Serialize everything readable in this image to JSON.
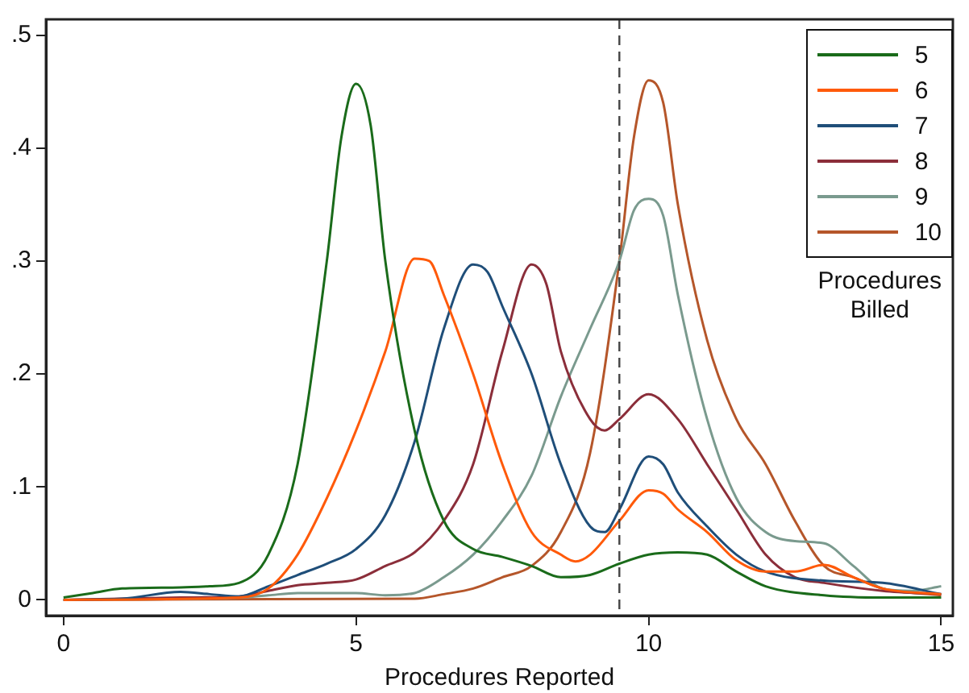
{
  "chart_data": {
    "type": "line",
    "xlabel": "Procedures Reported",
    "legend_title": "Procedures Billed",
    "legend": "top right",
    "grid": false,
    "marker": "none",
    "line_style": "solid",
    "xlim": [
      -0.3,
      15.2
    ],
    "xticks": [
      0,
      5,
      10,
      15
    ],
    "ylim": [
      -0.014,
      0.514
    ],
    "yticks": [
      {
        "value": 0,
        "label": "0"
      },
      {
        "value": 0.1,
        "label": ".1"
      },
      {
        "value": 0.2,
        "label": ".2"
      },
      {
        "value": 0.3,
        "label": ".3"
      },
      {
        "value": 0.4,
        "label": ".4"
      },
      {
        "value": 0.5,
        "label": ".5"
      }
    ],
    "ref_lines": [
      {
        "axis": "x",
        "value": 9.5,
        "label": null,
        "color": "#444444",
        "line_style": "dashed"
      }
    ],
    "series": [
      {
        "name": "5",
        "color": "#1a6b1a",
        "x": [
          0,
          0.5,
          1,
          2,
          2.5,
          3,
          3.5,
          4,
          4.5,
          4.75,
          5,
          5.25,
          5.5,
          6,
          6.5,
          7,
          7.5,
          8,
          8.5,
          9,
          9.5,
          10,
          10.5,
          11,
          11.5,
          12,
          13,
          14,
          15
        ],
        "values": [
          0.002,
          0.006,
          0.01,
          0.011,
          0.012,
          0.015,
          0.04,
          0.12,
          0.3,
          0.41,
          0.457,
          0.42,
          0.3,
          0.15,
          0.07,
          0.045,
          0.038,
          0.03,
          0.02,
          0.022,
          0.032,
          0.04,
          0.042,
          0.04,
          0.025,
          0.012,
          0.004,
          0.002,
          0.002
        ]
      },
      {
        "name": "6",
        "color": "#ff5a0a",
        "x": [
          0,
          3,
          3.5,
          4,
          4.5,
          5,
          5.5,
          6,
          6.25,
          6.5,
          7,
          7.5,
          8,
          8.5,
          8.75,
          9,
          9.5,
          10,
          10.25,
          10.5,
          11,
          11.5,
          12,
          12.5,
          13,
          13.5,
          14,
          15
        ],
        "values": [
          0,
          0.002,
          0.01,
          0.04,
          0.09,
          0.15,
          0.22,
          0.302,
          0.3,
          0.27,
          0.2,
          0.12,
          0.06,
          0.04,
          0.034,
          0.04,
          0.07,
          0.097,
          0.094,
          0.08,
          0.06,
          0.035,
          0.025,
          0.025,
          0.031,
          0.02,
          0.01,
          0.005
        ]
      },
      {
        "name": "7",
        "color": "#1f4e79",
        "x": [
          0,
          1,
          2,
          2.5,
          3,
          3.5,
          4,
          4.5,
          5,
          5.5,
          6,
          6.5,
          7,
          7.25,
          7.5,
          8,
          8.5,
          9,
          9.25,
          9.5,
          10,
          10.25,
          10.5,
          11,
          11.5,
          12,
          13,
          14,
          15
        ],
        "values": [
          0,
          0.001,
          0.007,
          0.005,
          0.003,
          0.012,
          0.022,
          0.032,
          0.045,
          0.075,
          0.14,
          0.24,
          0.297,
          0.29,
          0.26,
          0.2,
          0.12,
          0.065,
          0.06,
          0.08,
          0.127,
          0.12,
          0.095,
          0.065,
          0.04,
          0.025,
          0.017,
          0.015,
          0.005
        ]
      },
      {
        "name": "8",
        "color": "#8b2e3a",
        "x": [
          0,
          2,
          3,
          3.5,
          4,
          4.5,
          5,
          5.5,
          6,
          6.5,
          7,
          7.5,
          8,
          8.25,
          8.5,
          9,
          9.25,
          9.5,
          10,
          10.5,
          11,
          11.5,
          12,
          12.5,
          13,
          14,
          15
        ],
        "values": [
          0,
          0.002,
          0.003,
          0.008,
          0.013,
          0.015,
          0.018,
          0.03,
          0.042,
          0.07,
          0.12,
          0.22,
          0.297,
          0.28,
          0.22,
          0.16,
          0.15,
          0.16,
          0.182,
          0.16,
          0.12,
          0.08,
          0.04,
          0.02,
          0.015,
          0.008,
          0.005
        ]
      },
      {
        "name": "9",
        "color": "#7a9a8e",
        "x": [
          0,
          3,
          3.5,
          4,
          5,
          5.5,
          6,
          6.5,
          7,
          7.5,
          8,
          8.5,
          9,
          9.5,
          9.75,
          10,
          10.25,
          10.5,
          11,
          11.5,
          12,
          12.5,
          13,
          13.5,
          14,
          14.5,
          15
        ],
        "values": [
          0,
          0.002,
          0.004,
          0.006,
          0.006,
          0.004,
          0.006,
          0.02,
          0.04,
          0.07,
          0.11,
          0.18,
          0.24,
          0.3,
          0.345,
          0.355,
          0.34,
          0.27,
          0.16,
          0.09,
          0.06,
          0.052,
          0.05,
          0.03,
          0.01,
          0.008,
          0.012
        ]
      },
      {
        "name": "10",
        "color": "#b5562a",
        "x": [
          0,
          6,
          6.5,
          7,
          7.5,
          8,
          8.5,
          9,
          9.5,
          9.75,
          10,
          10.25,
          10.5,
          11,
          11.5,
          12,
          12.5,
          13,
          13.5,
          14,
          15
        ],
        "values": [
          0,
          0.001,
          0.005,
          0.01,
          0.02,
          0.03,
          0.06,
          0.13,
          0.3,
          0.41,
          0.46,
          0.44,
          0.35,
          0.23,
          0.16,
          0.12,
          0.07,
          0.03,
          0.02,
          0.01,
          0.004
        ]
      }
    ]
  }
}
